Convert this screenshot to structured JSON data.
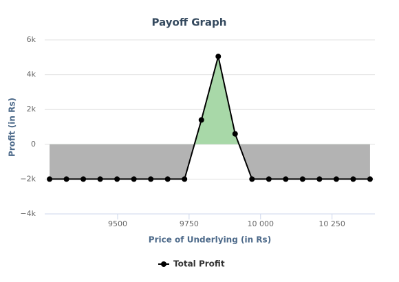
{
  "chart_data": {
    "type": "line",
    "title": "Payoff Graph",
    "x_label": "Price of Underlying (in Rs)",
    "y_label": "Profit (in Rs)",
    "x": [
      9262,
      9321,
      9380,
      9439,
      9498,
      9557,
      9616,
      9675,
      9734,
      9793,
      9852,
      9911,
      9970,
      10029,
      10088,
      10147,
      10206,
      10265,
      10324,
      10383
    ],
    "series": [
      {
        "name": "Total Profit",
        "color": "#000000",
        "values": [
          -2000,
          -2000,
          -2000,
          -2000,
          -2000,
          -2000,
          -2000,
          -2000,
          -2000,
          1400,
          5050,
          600,
          -2000,
          -2000,
          -2000,
          -2000,
          -2000,
          -2000,
          -2000,
          -2000
        ]
      }
    ],
    "positive_fill": "#a8d8a8",
    "negative_fill": "#b3b3b3",
    "xlim": [
      9245,
      10400
    ],
    "xticks": [
      9500,
      9750,
      {
        "value": 10000,
        "label": "10 000"
      },
      {
        "value": 10250,
        "label": "10 250"
      }
    ],
    "ylim": [
      -4000,
      6000
    ],
    "yticks": [
      {
        "value": -4000,
        "label": "−4k"
      },
      {
        "value": -2000,
        "label": "−2k"
      },
      0,
      {
        "value": 2000,
        "label": "2k"
      },
      {
        "value": 4000,
        "label": "4k"
      },
      {
        "value": 6000,
        "label": "6k"
      }
    ],
    "grid": true,
    "legend": "bottom"
  }
}
